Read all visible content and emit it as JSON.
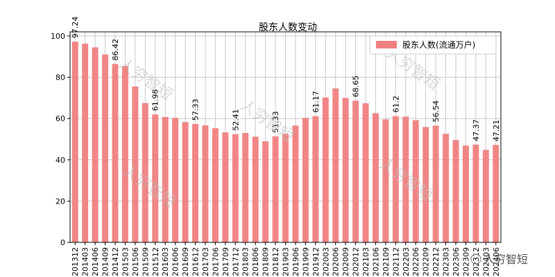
{
  "chart_data": {
    "type": "bar",
    "title": "股东人数变动",
    "xlabel": "",
    "ylabel": "",
    "ylim": [
      0,
      102
    ],
    "yticks": [
      0,
      20,
      40,
      60,
      80,
      100
    ],
    "grid": true,
    "legend_position": "top-right",
    "series": [
      {
        "name": "股东人数(流通万户)",
        "color": "#f08080",
        "values": [
          97.24,
          96.3,
          94.5,
          91.0,
          86.42,
          85.5,
          75.5,
          67.5,
          61.98,
          60.8,
          60.3,
          58.3,
          57.33,
          56.7,
          55.3,
          53.3,
          52.41,
          53.0,
          51.2,
          49.0,
          51.33,
          52.6,
          56.6,
          60.3,
          61.17,
          70.2,
          74.6,
          70.0,
          68.65,
          67.4,
          62.6,
          59.6,
          61.2,
          60.9,
          59.2,
          55.9,
          56.54,
          52.6,
          49.6,
          46.9,
          47.37,
          44.8,
          47.21
        ]
      }
    ],
    "categories": [
      "201312",
      "201403",
      "201406",
      "201409",
      "201412",
      "201503",
      "201506",
      "201509",
      "201512",
      "201603",
      "201606",
      "201609",
      "201612",
      "201703",
      "201706",
      "201709",
      "201712",
      "201803",
      "201806",
      "201809",
      "201812",
      "201903",
      "201906",
      "201909",
      "201912",
      "202003",
      "202006",
      "202009",
      "202012",
      "202103",
      "202106",
      "202109",
      "202112",
      "202203",
      "202206",
      "202209",
      "202212",
      "202303",
      "202306",
      "202309",
      "202312",
      "202403",
      "202406"
    ],
    "data_labels": [
      {
        "index": 0,
        "text": "97.24"
      },
      {
        "index": 4,
        "text": "86.42"
      },
      {
        "index": 8,
        "text": "61.98"
      },
      {
        "index": 12,
        "text": "57.33"
      },
      {
        "index": 16,
        "text": "52.41"
      },
      {
        "index": 20,
        "text": "51.33"
      },
      {
        "index": 24,
        "text": "61.17"
      },
      {
        "index": 28,
        "text": "68.65"
      },
      {
        "index": 32,
        "text": "61.2"
      },
      {
        "index": 36,
        "text": "56.54"
      },
      {
        "index": 40,
        "text": "47.37"
      },
      {
        "index": 42,
        "text": "47.21"
      }
    ]
  },
  "watermark": {
    "text": "人穷智短",
    "footer_text": "人穷智短"
  }
}
